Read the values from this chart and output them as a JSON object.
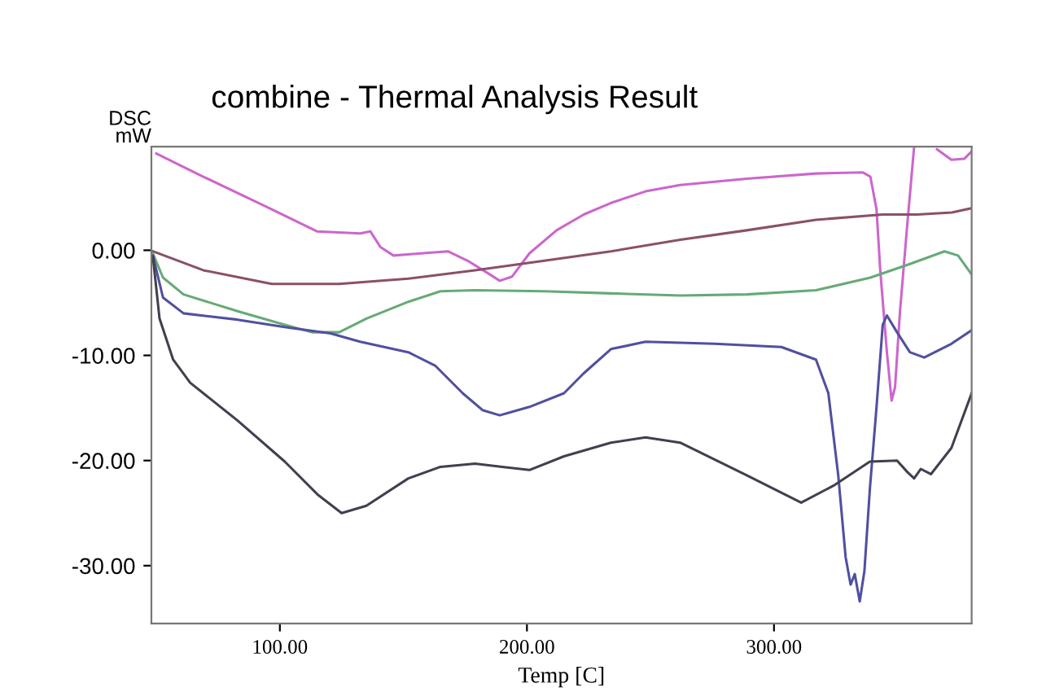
{
  "chart_data": {
    "type": "line",
    "title": "combine - Thermal Analysis Result",
    "xlabel": "Temp [C]",
    "ylabel": "DSC\nmW",
    "xlim": [
      48,
      380
    ],
    "ylim": [
      -35.5,
      9.85
    ],
    "xticks": [
      {
        "value": 100,
        "label": "100.00"
      },
      {
        "value": 200,
        "label": "200.00"
      },
      {
        "value": 300,
        "label": "300.00"
      }
    ],
    "yticks": [
      {
        "value": 0,
        "label": "0.00"
      },
      {
        "value": -10,
        "label": "-10.00"
      },
      {
        "value": -20,
        "label": "-20.00"
      },
      {
        "value": -30,
        "label": "-30.00"
      }
    ],
    "grid": false,
    "legend": false,
    "marker": "none",
    "line_style": "solid",
    "series": [
      {
        "color": "#cc66cc",
        "x": [
          50,
          69,
          96.7,
          115,
          132.5,
          136.6,
          140.7,
          146,
          157,
          168,
          176,
          185,
          189,
          194,
          201,
          212,
          223,
          234,
          248,
          262,
          289,
          317,
          336,
          339,
          341.5,
          343,
          345.7,
          347.6,
          349,
          351,
          354,
          356.7,
          357.5,
          366,
          371.8,
          377,
          380
        ],
        "values": [
          9.2,
          7.0,
          3.9,
          1.8,
          1.6,
          1.8,
          0.3,
          -0.5,
          -0.3,
          -0.1,
          -1.0,
          -2.3,
          -2.9,
          -2.5,
          -0.3,
          1.9,
          3.4,
          4.5,
          5.6,
          6.2,
          6.8,
          7.3,
          7.4,
          7.0,
          3.9,
          -1.9,
          -9.7,
          -14.3,
          -13,
          -5.8,
          2.6,
          9.8,
          null,
          9.6,
          8.6,
          8.7,
          9.4
        ]
      },
      {
        "color": "#8b5068",
        "x": [
          48.6,
          69,
          96.7,
          124,
          152,
          179,
          207,
          234,
          262,
          289,
          317,
          344,
          358,
          372,
          380
        ],
        "values": [
          -0.1,
          -1.9,
          -3.2,
          -3.2,
          -2.7,
          -1.9,
          -1.0,
          -0.1,
          1.0,
          1.9,
          2.9,
          3.4,
          3.4,
          3.6,
          4.0
        ]
      },
      {
        "color": "#66aa77",
        "x": [
          48.6,
          52.7,
          61,
          82.9,
          102,
          113,
          124,
          135,
          152,
          165,
          179,
          207,
          234,
          262,
          289,
          317,
          339,
          355,
          369,
          374.5,
          380
        ],
        "values": [
          -0.3,
          -2.6,
          -4.2,
          -5.8,
          -7.1,
          -7.8,
          -7.8,
          -6.5,
          -4.9,
          -3.9,
          -3.8,
          -3.9,
          -4.1,
          -4.3,
          -4.2,
          -3.8,
          -2.6,
          -1.3,
          -0.1,
          -0.5,
          -2.3
        ]
      },
      {
        "color": "#5050a0",
        "x": [
          48.6,
          52.7,
          61,
          82.9,
          102,
          120.5,
          132.5,
          152,
          163,
          174,
          182,
          189,
          201,
          215,
          223,
          234,
          248,
          276,
          303,
          317,
          322,
          326,
          329,
          331,
          332.7,
          334.7,
          336.6,
          338.8,
          341.5,
          344,
          345.7,
          349.8,
          355,
          360.8,
          371.8,
          380
        ],
        "values": [
          -0.5,
          -4.5,
          -6.0,
          -6.6,
          -7.3,
          -7.9,
          -8.7,
          -9.7,
          -11.0,
          -13.6,
          -15.2,
          -15.7,
          -14.9,
          -13.6,
          -11.7,
          -9.4,
          -8.7,
          -8.9,
          -9.2,
          -10.4,
          -13.6,
          -21.4,
          -29.2,
          -31.8,
          -30.8,
          -33.4,
          -30.5,
          -22.7,
          -14.9,
          -7.1,
          -6.2,
          -7.8,
          -9.7,
          -10.2,
          -8.9,
          -7.6
        ]
      },
      {
        "color": "#404050",
        "x": [
          48.6,
          51.3,
          56.8,
          63.7,
          82.9,
          102,
          115.6,
          125,
          135,
          152,
          165,
          179,
          190,
          201,
          215,
          234,
          248,
          262,
          289,
          311,
          324,
          338.8,
          349.8,
          354,
          356.7,
          359.4,
          363.5,
          371.8,
          380
        ],
        "values": [
          -0.6,
          -6.5,
          -10.4,
          -12.6,
          -16.2,
          -20.1,
          -23.3,
          -25.0,
          -24.3,
          -21.7,
          -20.6,
          -20.3,
          -20.6,
          -20.9,
          -19.6,
          -18.3,
          -17.8,
          -18.3,
          -21.4,
          -24.0,
          -22.4,
          -20.1,
          -20.0,
          -21.1,
          -21.7,
          -20.8,
          -21.3,
          -18.8,
          -13.6
        ]
      }
    ]
  }
}
